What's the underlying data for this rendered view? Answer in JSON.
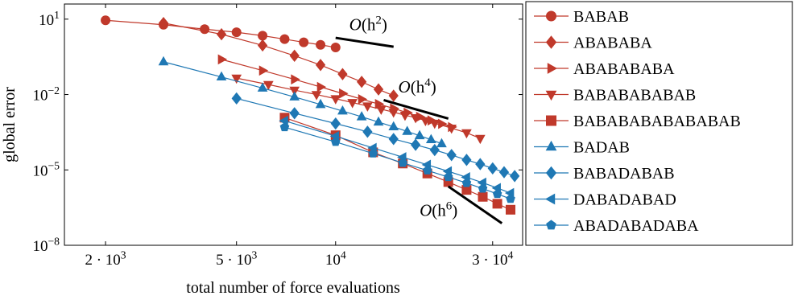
{
  "chart_data": {
    "type": "line",
    "x_scale": "log",
    "y_scale": "log",
    "xlim": [
      1500,
      37000
    ],
    "ylim": [
      1e-08,
      40
    ],
    "xlabel": "total number of force evaluations",
    "ylabel": "global error",
    "x_ticks": [
      {
        "value": 2000,
        "base": "2 · 10",
        "exp": "3"
      },
      {
        "value": 5000,
        "base": "5 · 10",
        "exp": "3"
      },
      {
        "value": 10000,
        "base": "10",
        "exp": "4"
      },
      {
        "value": 30000,
        "base": "3 · 10",
        "exp": "4"
      }
    ],
    "y_ticks": [
      {
        "value": 10,
        "base": "10",
        "exp": "1"
      },
      {
        "value": 0.01,
        "base": "10",
        "exp": "−2"
      },
      {
        "value": 1e-05,
        "base": "10",
        "exp": "−5"
      },
      {
        "value": 1e-08,
        "base": "10",
        "exp": "−8"
      }
    ],
    "legend_position": "outside-right",
    "series": [
      {
        "name": "BABAB",
        "color": "#c0392b",
        "marker": "circle",
        "x": [
          2000,
          3000,
          4000,
          5000,
          6000,
          7000,
          8000,
          9000,
          10000
        ],
        "y": [
          9.0,
          6.0,
          4.0,
          3.0,
          2.2,
          1.6,
          1.2,
          0.95,
          0.75
        ]
      },
      {
        "name": "ABABABA",
        "color": "#c0392b",
        "marker": "diamond",
        "x": [
          3000,
          4500,
          6000,
          7500,
          9000,
          10500,
          12000,
          13500,
          15000
        ],
        "y": [
          7.0,
          2.5,
          0.9,
          0.35,
          0.15,
          0.065,
          0.032,
          0.016,
          0.009
        ]
      },
      {
        "name": "ABABABABA",
        "color": "#c0392b",
        "marker": "triangle-right",
        "x": [
          4500,
          6000,
          7500,
          9000,
          10500,
          12000,
          13500,
          15000,
          16500,
          18000,
          19500,
          21000,
          22500
        ],
        "y": [
          0.25,
          0.09,
          0.04,
          0.02,
          0.011,
          0.0065,
          0.0042,
          0.0028,
          0.0019,
          0.0013,
          0.00093,
          0.00068,
          0.00051
        ]
      },
      {
        "name": "BABABABABAB",
        "color": "#c0392b",
        "marker": "triangle-down",
        "x": [
          5000,
          6250,
          7500,
          8750,
          10000,
          11250,
          12500,
          13750,
          15000,
          16250,
          17500,
          18750,
          20000,
          22500,
          25000,
          27500
        ],
        "y": [
          0.045,
          0.025,
          0.015,
          0.01,
          0.0068,
          0.0048,
          0.0035,
          0.0026,
          0.002,
          0.0015,
          0.0012,
          0.00092,
          0.00072,
          0.00046,
          0.0003,
          0.00018
        ]
      },
      {
        "name": "BABABABABABABAB",
        "color": "#c0392b",
        "marker": "square",
        "x": [
          7000,
          10000,
          13000,
          16000,
          19000,
          22000,
          25000,
          28000,
          31000,
          34000
        ],
        "y": [
          0.0012,
          0.00024,
          5e-05,
          1.8e-05,
          7.2e-06,
          3.3e-06,
          1.6e-06,
          8.5e-07,
          4.5e-07,
          2.6e-07
        ]
      },
      {
        "name": "BADAB",
        "color": "#1f78b4",
        "marker": "triangle-up",
        "x": [
          3000,
          4500,
          6000,
          7500,
          9000,
          10500,
          12000,
          13500,
          15000,
          16500,
          18000,
          19500,
          21000
        ],
        "y": [
          0.2,
          0.05,
          0.018,
          0.008,
          0.004,
          0.0022,
          0.0013,
          0.0008,
          0.00052,
          0.00034,
          0.00023,
          0.00016,
          0.00011
        ]
      },
      {
        "name": "BABADABAB",
        "color": "#1f78b4",
        "marker": "diamond",
        "x": [
          5000,
          7500,
          10000,
          12500,
          15000,
          17500,
          20000,
          22500,
          25000,
          27500,
          30000,
          32500,
          35000
        ],
        "y": [
          0.007,
          0.0018,
          0.0007,
          0.00033,
          0.00017,
          0.0001,
          6.2e-05,
          3.9e-05,
          2.5e-05,
          1.7e-05,
          1.15e-05,
          8.1e-06,
          5.7e-06
        ]
      },
      {
        "name": "DABADABAD",
        "color": "#1f78b4",
        "marker": "triangle-left",
        "x": [
          7000,
          10000,
          13000,
          16000,
          19000,
          22000,
          25000,
          28000,
          31000,
          34000
        ],
        "y": [
          0.0009,
          0.00022,
          7.5e-05,
          3.2e-05,
          1.6e-05,
          8.8e-06,
          5.1e-06,
          3.1e-06,
          1.9e-06,
          1.2e-06
        ]
      },
      {
        "name": "ABADABADABA",
        "color": "#1f78b4",
        "marker": "pentagon",
        "x": [
          7000,
          10000,
          13000,
          16000,
          19000,
          22000,
          25000,
          28000,
          31000,
          34000
        ],
        "y": [
          0.0005,
          0.00013,
          4.5e-05,
          1.9e-05,
          9.5e-06,
          5.2e-06,
          3e-06,
          1.8e-06,
          1.1e-06,
          7e-07
        ]
      }
    ],
    "reference_slopes": [
      {
        "label": "O(h",
        "exp": "2",
        "x": [
          10000,
          15000
        ],
        "y": [
          1.8,
          0.8
        ],
        "label_x": 11000,
        "label_y": 3.6
      },
      {
        "label": "O(h",
        "exp": "4",
        "x": [
          14000,
          22000
        ],
        "y": [
          0.006,
          0.0011
        ],
        "label_x": 15500,
        "label_y": 0.012
      },
      {
        "label": "O(h",
        "exp": "6",
        "x": [
          22000,
          32000
        ],
        "y": [
          2.2e-06,
          7.5e-08
        ],
        "label_x": 18000,
        "label_y": 1.5e-07
      }
    ]
  }
}
